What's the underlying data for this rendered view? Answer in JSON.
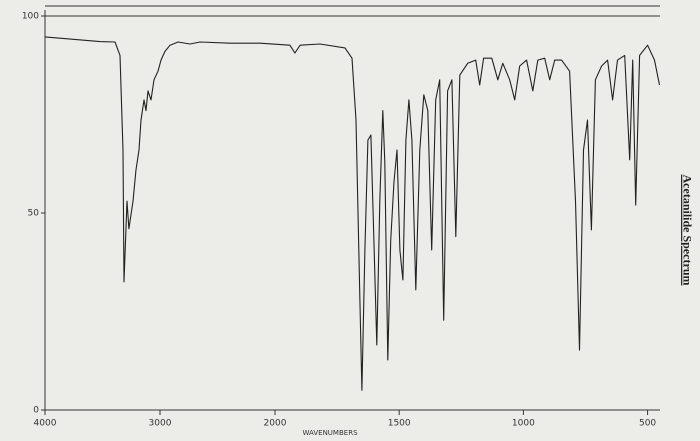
{
  "chart_data": {
    "type": "line",
    "title": "Acetanilide Spectrum",
    "x_label": "WAVENUMBERS",
    "xlim": [
      4000,
      450
    ],
    "x_scale_change": 2000,
    "xticks": [
      4000,
      3000,
      2000,
      1500,
      1000,
      500
    ],
    "ylim": [
      0,
      100
    ],
    "yticks": [
      0,
      50,
      100
    ],
    "grid": false,
    "series": [
      {
        "name": "Acetanilide",
        "color": "#222222",
        "x": [
          4000,
          3522,
          3391,
          3348,
          3322,
          3313,
          3287,
          3270,
          3235,
          3209,
          3183,
          3165,
          3139,
          3122,
          3104,
          3078,
          3052,
          3017,
          2991,
          2957,
          2913,
          2843,
          2739,
          2652,
          2391,
          2130,
          1940,
          1920,
          1899,
          1819,
          1718,
          1690,
          1674,
          1658,
          1650,
          1638,
          1626,
          1614,
          1602,
          1590,
          1578,
          1566,
          1558,
          1546,
          1534,
          1521,
          1509,
          1497,
          1485,
          1473,
          1461,
          1449,
          1433,
          1417,
          1401,
          1385,
          1369,
          1353,
          1337,
          1321,
          1305,
          1288,
          1272,
          1256,
          1224,
          1192,
          1176,
          1160,
          1127,
          1103,
          1083,
          1055,
          1035,
          1015,
          987,
          962,
          942,
          914,
          894,
          874,
          846,
          814,
          790,
          774,
          758,
          742,
          726,
          710,
          685,
          661,
          641,
          621,
          592,
          572,
          560,
          548,
          532,
          500,
          472,
          452
        ],
        "values": [
          94.7,
          93.5,
          93.4,
          90,
          66,
          32.5,
          53,
          46,
          53,
          61,
          66,
          73.6,
          78.7,
          76,
          81,
          78.7,
          83.8,
          86,
          88.8,
          91,
          92.6,
          93.4,
          92.9,
          93.4,
          93.1,
          93.1,
          92.6,
          90.6,
          92.6,
          92.9,
          91.9,
          89.3,
          73.6,
          27.9,
          5,
          40.6,
          68.5,
          69.8,
          43,
          16.5,
          53,
          76,
          63,
          12.7,
          43,
          58,
          66,
          40.6,
          33,
          68.5,
          78.7,
          68.5,
          30.5,
          66,
          80,
          76,
          40.6,
          78.7,
          83.8,
          22.8,
          81,
          83.8,
          44,
          85,
          88,
          88.8,
          82.5,
          89.3,
          89.3,
          83.8,
          88,
          83.8,
          78.7,
          87.3,
          88.8,
          81,
          88.8,
          89.3,
          83.8,
          88.8,
          88.8,
          86,
          53,
          15.2,
          66,
          73.6,
          45.7,
          83.8,
          87.3,
          88.8,
          78.7,
          88.8,
          90,
          63.5,
          88.8,
          52,
          90,
          92.6,
          88.8,
          82.5
        ]
      }
    ]
  }
}
